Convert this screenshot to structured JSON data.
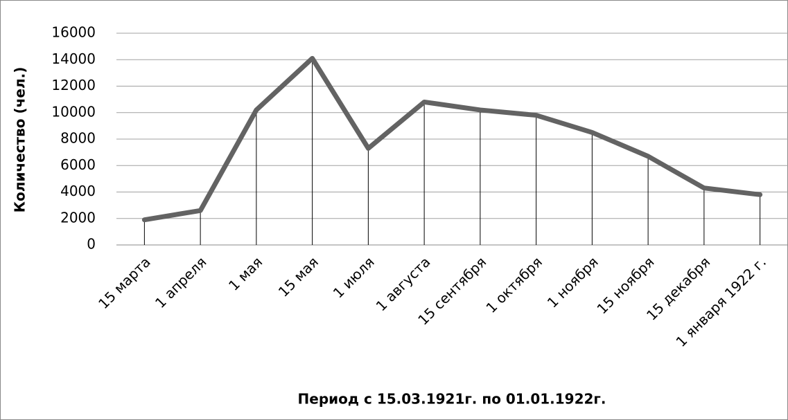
{
  "chart_data": {
    "type": "line",
    "x_label": "Период с 15.03.1921г. по 01.01.1922г.",
    "y_label": "Количество (чел.)",
    "categories": [
      "15 марта",
      "1 апреля",
      "1 мая",
      "15 мая",
      "1 июля",
      "1 августа",
      "15 сентября",
      "1 октября",
      "1 ноября",
      "15 ноября",
      "15 декабря",
      "1 января 1922 г."
    ],
    "values": [
      1900,
      2600,
      10200,
      14100,
      7300,
      10800,
      10200,
      9800,
      8500,
      6700,
      4300,
      3800
    ],
    "color": "#636363",
    "ylim": [
      0,
      16000
    ],
    "yticks": [
      0,
      2000,
      4000,
      6000,
      8000,
      10000,
      12000,
      14000,
      16000
    ],
    "grid": true,
    "drop_lines": true
  }
}
